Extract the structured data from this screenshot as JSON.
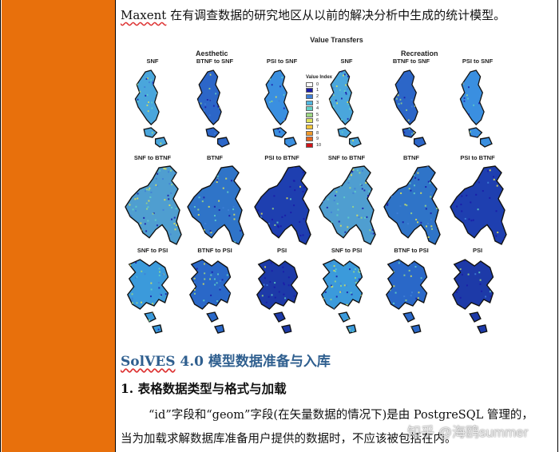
{
  "document": {
    "intro": "Maxent 在有调查数据的研究地区从以前的解决分析中生成的统计模型。",
    "intro_underlined": "Maxent",
    "intro_rest": " 在有调查数据的研究地区从以前的解决分析中生成的统计模型。",
    "heading1_underlined": "SolVES",
    "heading1_rest": " 4.0  模型数据准备与入库",
    "heading2": "1. 表格数据类型与格式与加载",
    "para1": "“id”字段和“geom”字段(在矢量数据的情况下)是由 PostgreSQL 管理的，",
    "para2": "当为加载求解数据库准备用户提供的数据时，不应该被包括在内。"
  },
  "figure": {
    "title": "Value Transfers",
    "groups": [
      "Aesthetic",
      "Recreation"
    ],
    "row1_labels": [
      "SNF",
      "BTNF to SNF",
      "PSI to SNF",
      "SNF",
      "BTNF to SNF",
      "PSI to SNF"
    ],
    "row2_labels": [
      "SNF to BTNF",
      "BTNF",
      "PSI to BTNF",
      "SNF to BTNF",
      "BTNF",
      "PSI to BTNF"
    ],
    "row3_labels": [
      "SNF to PSI",
      "BTNF to PSI",
      "PSI",
      "SNF to PSI",
      "BTNF to PSI",
      "PSI"
    ],
    "legend_title": "Value Index",
    "legend": [
      {
        "value": "0",
        "color": "#ffffff"
      },
      {
        "value": "1",
        "color": "#1a1aa8"
      },
      {
        "value": "2",
        "color": "#3f7fd6"
      },
      {
        "value": "3",
        "color": "#4fb6e0"
      },
      {
        "value": "4",
        "color": "#62d0c6"
      },
      {
        "value": "5",
        "color": "#9ed884"
      },
      {
        "value": "6",
        "color": "#dde25a"
      },
      {
        "value": "7",
        "color": "#f3c63c"
      },
      {
        "value": "8",
        "color": "#f09a2a"
      },
      {
        "value": "9",
        "color": "#e5641c"
      },
      {
        "value": "10",
        "color": "#d0141a"
      }
    ]
  },
  "watermark": "知乎 @海鸥summer",
  "colors": {
    "sidebar": "#e8700c",
    "heading": "#2f5f8f"
  }
}
